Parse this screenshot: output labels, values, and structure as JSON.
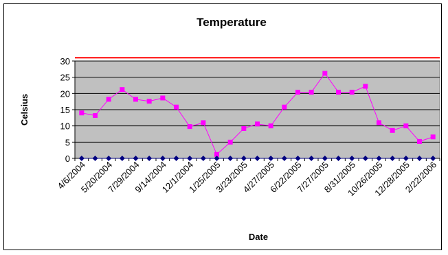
{
  "chart_data": {
    "type": "line",
    "title": "Temperature",
    "xlabel": "Date",
    "ylabel": "Celsius",
    "ylim": [
      0,
      30
    ],
    "yticks": [
      0,
      5,
      10,
      15,
      20,
      25,
      30
    ],
    "x_tick_labels": [
      "4/6/2004",
      "5/20/2004",
      "7/29/2004",
      "9/14/2004",
      "12/1/2004",
      "1/25/2005",
      "3/23/2005",
      "4/27/2005",
      "6/22/2005",
      "7/27/2005",
      "8/31/2005",
      "10/26/2005",
      "12/28/2005",
      "2/22/2006"
    ],
    "grid": true,
    "plot_background": "#c0c0c0",
    "series": [
      {
        "color": "#ff00ff",
        "marker": "square",
        "values": [
          14,
          13.2,
          18.2,
          21.2,
          18.2,
          17.6,
          18.6,
          15.8,
          9.8,
          11,
          1.2,
          5,
          9.2,
          10.6,
          10,
          15.8,
          20.4,
          20.4,
          26.2,
          20.4,
          20.4,
          22.2,
          11,
          8.6,
          10,
          5.2,
          6.6
        ]
      },
      {
        "color": "#000080",
        "marker": "diamond",
        "values": [
          0,
          0,
          0,
          0,
          0,
          0,
          0,
          0,
          0,
          0,
          0,
          0,
          0,
          0,
          0,
          0,
          0,
          0,
          0,
          0,
          0,
          0,
          0,
          0,
          0,
          0,
          0
        ]
      },
      {
        "color": "#ff0000",
        "marker": "none",
        "values": [
          31,
          31,
          31,
          31,
          31,
          31,
          31,
          31,
          31,
          31,
          31,
          31,
          31,
          31,
          31,
          31,
          31,
          31,
          31,
          31,
          31,
          31,
          31,
          31,
          31,
          31,
          31
        ]
      }
    ]
  }
}
